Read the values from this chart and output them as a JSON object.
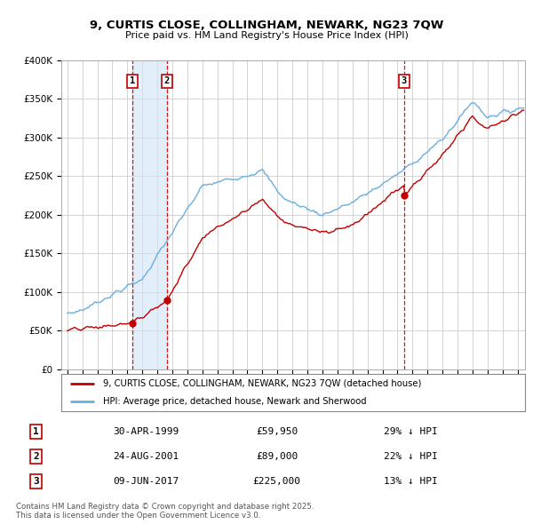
{
  "title": "9, CURTIS CLOSE, COLLINGHAM, NEWARK, NG23 7QW",
  "subtitle": "Price paid vs. HM Land Registry's House Price Index (HPI)",
  "legend_line1": "9, CURTIS CLOSE, COLLINGHAM, NEWARK, NG23 7QW (detached house)",
  "legend_line2": "HPI: Average price, detached house, Newark and Sherwood",
  "footnote1": "Contains HM Land Registry data © Crown copyright and database right 2025.",
  "footnote2": "This data is licensed under the Open Government Licence v3.0.",
  "transactions": [
    {
      "label": "1",
      "date": "30-APR-1999",
      "price": "£59,950",
      "pct": "29% ↓ HPI",
      "year_x": 1999.33
    },
    {
      "label": "2",
      "date": "24-AUG-2001",
      "price": "£89,000",
      "pct": "22% ↓ HPI",
      "year_x": 2001.64
    },
    {
      "label": "3",
      "date": "09-JUN-2017",
      "price": "£225,000",
      "pct": "13% ↓ HPI",
      "year_x": 2017.44
    }
  ],
  "hpi_color": "#6aaee0",
  "price_color": "#c00000",
  "vline_color": "#cc0000",
  "shade_color": "#d0e4f5",
  "grid_color": "#cccccc",
  "bg_color": "#ffffff",
  "ylim": [
    0,
    400000
  ],
  "yticks": [
    0,
    50000,
    100000,
    150000,
    200000,
    250000,
    300000,
    350000,
    400000
  ],
  "xlim_start": 1994.6,
  "xlim_end": 2025.5
}
